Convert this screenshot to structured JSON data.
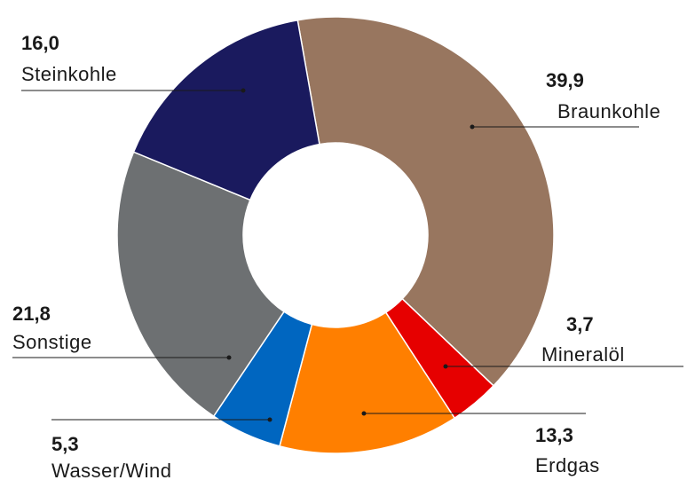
{
  "chart_data": {
    "type": "pie",
    "title": "",
    "donut": true,
    "categories": [
      "Braunkohle",
      "Mineralöl",
      "Erdgas",
      "Wasser/Wind",
      "Sonstige",
      "Steinkohle"
    ],
    "values": [
      39.9,
      3.7,
      13.3,
      5.3,
      21.8,
      16.0
    ],
    "value_labels": [
      "39,9",
      "3,7",
      "13,3",
      "5,3",
      "21,8",
      "16,0"
    ],
    "colors": [
      "#98765f",
      "#e60000",
      "#ff7f00",
      "#0066c0",
      "#6d7072",
      "#1a1a5e"
    ]
  }
}
